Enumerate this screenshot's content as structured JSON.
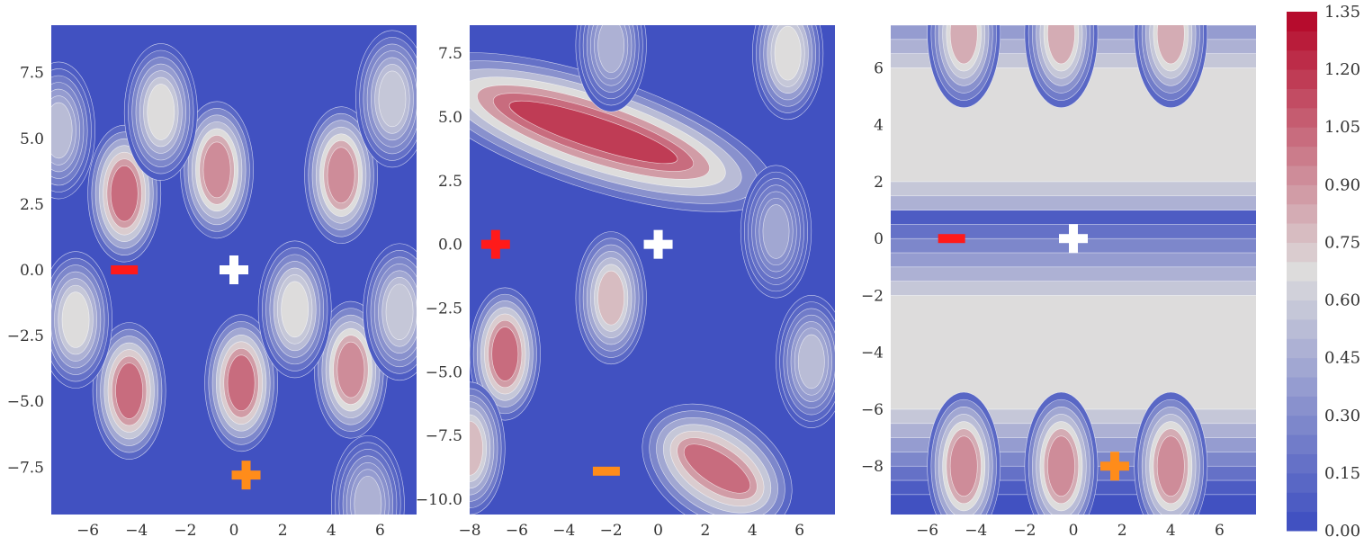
{
  "colors": {
    "low": "#3b4cc0",
    "mid": "#dddcdc",
    "high": "#b40426",
    "marker_red": "#ff1a1a",
    "marker_orange": "#ff8c1a",
    "marker_white": "#ffffff",
    "contour_line": "#ffffff"
  },
  "chart_data": [
    {
      "type": "heatmap",
      "panel": "left",
      "xlim": [
        -7.5,
        7.5
      ],
      "ylim": [
        -9.3,
        9.3
      ],
      "xticks": [
        -6,
        -4,
        -2,
        0,
        2,
        4,
        6
      ],
      "xtick_labels": [
        "−6",
        "−4",
        "−2",
        "0",
        "2",
        "4",
        "6"
      ],
      "yticks": [
        -7.5,
        -5.0,
        -2.5,
        0.0,
        2.5,
        5.0,
        7.5
      ],
      "ytick_labels": [
        "−7.5",
        "−5.0",
        "−2.5",
        "0.0",
        "2.5",
        "5.0",
        "7.5"
      ],
      "peaks": [
        {
          "x": -4.5,
          "y": 2.9,
          "value": 1.0
        },
        {
          "x": -0.7,
          "y": 3.8,
          "value": 0.95
        },
        {
          "x": 4.4,
          "y": 3.6,
          "value": 0.95
        },
        {
          "x": -3.0,
          "y": 6.0,
          "value": 0.65
        },
        {
          "x": 6.5,
          "y": 6.5,
          "value": 0.6
        },
        {
          "x": -7.2,
          "y": 5.3,
          "value": 0.5
        },
        {
          "x": -4.3,
          "y": -4.6,
          "value": 1.0
        },
        {
          "x": 0.3,
          "y": -4.3,
          "value": 1.0
        },
        {
          "x": 4.8,
          "y": -3.8,
          "value": 0.95
        },
        {
          "x": -6.5,
          "y": -1.9,
          "value": 0.65
        },
        {
          "x": 2.5,
          "y": -1.5,
          "value": 0.7
        },
        {
          "x": 6.8,
          "y": -1.6,
          "value": 0.6
        },
        {
          "x": 5.5,
          "y": -8.9,
          "value": 0.45
        }
      ],
      "markers": [
        {
          "symbol": "minus",
          "color": "marker_red",
          "x": -4.5,
          "y": 0.0
        },
        {
          "symbol": "plus",
          "color": "marker_white",
          "x": 0.0,
          "y": 0.0
        },
        {
          "symbol": "plus",
          "color": "marker_orange",
          "x": 0.5,
          "y": -7.8
        }
      ]
    },
    {
      "type": "heatmap",
      "panel": "middle",
      "xlim": [
        -8.0,
        7.5
      ],
      "ylim": [
        -10.6,
        8.6
      ],
      "xticks": [
        -8,
        -6,
        -4,
        -2,
        0,
        2,
        4,
        6
      ],
      "xtick_labels": [
        "−8",
        "−6",
        "−4",
        "−2",
        "0",
        "2",
        "4",
        "6"
      ],
      "yticks": [
        -10.0,
        -7.5,
        -5.0,
        -2.5,
        0.0,
        2.5,
        5.0,
        7.5
      ],
      "ytick_labels": [
        "−10.0",
        "−7.5",
        "−5.0",
        "−2.5",
        "0.0",
        "2.5",
        "5.0",
        "7.5"
      ],
      "ridges": [
        {
          "x1": -8.0,
          "y1": 6.0,
          "x2": 2.5,
          "y2": 2.8,
          "value": 1.2
        },
        {
          "x1": 0.5,
          "y1": -7.6,
          "x2": 4.5,
          "y2": -10.0,
          "value": 1.0
        }
      ],
      "peaks": [
        {
          "x": -6.5,
          "y": -4.3,
          "value": 1.0
        },
        {
          "x": -2.0,
          "y": -2.1,
          "value": 0.75
        },
        {
          "x": -8.0,
          "y": -8.0,
          "value": 0.75
        },
        {
          "x": 5.5,
          "y": 7.5,
          "value": 0.7
        },
        {
          "x": -2.0,
          "y": 7.8,
          "value": 0.45
        },
        {
          "x": 6.5,
          "y": -4.6,
          "value": 0.5
        },
        {
          "x": 5.0,
          "y": 0.5,
          "value": 0.4
        }
      ],
      "markers": [
        {
          "symbol": "plus",
          "color": "marker_red",
          "x": -6.9,
          "y": 0.0
        },
        {
          "symbol": "plus",
          "color": "marker_white",
          "x": 0.0,
          "y": 0.0
        },
        {
          "symbol": "minus",
          "color": "marker_orange",
          "x": -2.2,
          "y": -8.9
        }
      ]
    },
    {
      "type": "heatmap",
      "panel": "right",
      "xlim": [
        -7.5,
        7.5
      ],
      "ylim": [
        -9.7,
        7.5
      ],
      "xticks": [
        -6,
        -4,
        -2,
        0,
        2,
        4,
        6
      ],
      "xtick_labels": [
        "−6",
        "−4",
        "−2",
        "0",
        "2",
        "4",
        "6"
      ],
      "yticks": [
        -8,
        -6,
        -4,
        -2,
        0,
        2,
        4,
        6
      ],
      "ytick_labels": [
        "−8",
        "−6",
        "−4",
        "−2",
        "0",
        "2",
        "4",
        "6"
      ],
      "bands": [
        {
          "y": 0.0,
          "width": 1.0,
          "value": 0.0
        },
        {
          "y": 4.0,
          "width": 2.5,
          "value": 0.68
        },
        {
          "y": -4.0,
          "width": 2.5,
          "value": 0.68
        }
      ],
      "peaks": [
        {
          "x": -4.5,
          "y": -8.0,
          "value": 0.95
        },
        {
          "x": -0.5,
          "y": -8.0,
          "value": 0.95
        },
        {
          "x": 4.0,
          "y": -8.0,
          "value": 0.95
        },
        {
          "x": -4.5,
          "y": 7.2,
          "value": 0.8
        },
        {
          "x": -0.5,
          "y": 7.2,
          "value": 0.8
        },
        {
          "x": 4.0,
          "y": 7.2,
          "value": 0.8
        }
      ],
      "markers": [
        {
          "symbol": "minus",
          "color": "marker_red",
          "x": -5.0,
          "y": 0.0
        },
        {
          "symbol": "plus",
          "color": "marker_white",
          "x": 0.0,
          "y": 0.0
        },
        {
          "symbol": "plus",
          "color": "marker_orange",
          "x": 1.7,
          "y": -8.0
        }
      ]
    }
  ],
  "colorbar": {
    "min": 0.0,
    "max": 1.35,
    "levels": 27,
    "ticks": [
      0.0,
      0.15,
      0.3,
      0.45,
      0.6,
      0.75,
      0.9,
      1.05,
      1.2,
      1.35
    ],
    "tick_labels": [
      "0.00",
      "0.15",
      "0.30",
      "0.45",
      "0.60",
      "0.75",
      "0.90",
      "1.05",
      "1.20",
      "1.35"
    ]
  }
}
